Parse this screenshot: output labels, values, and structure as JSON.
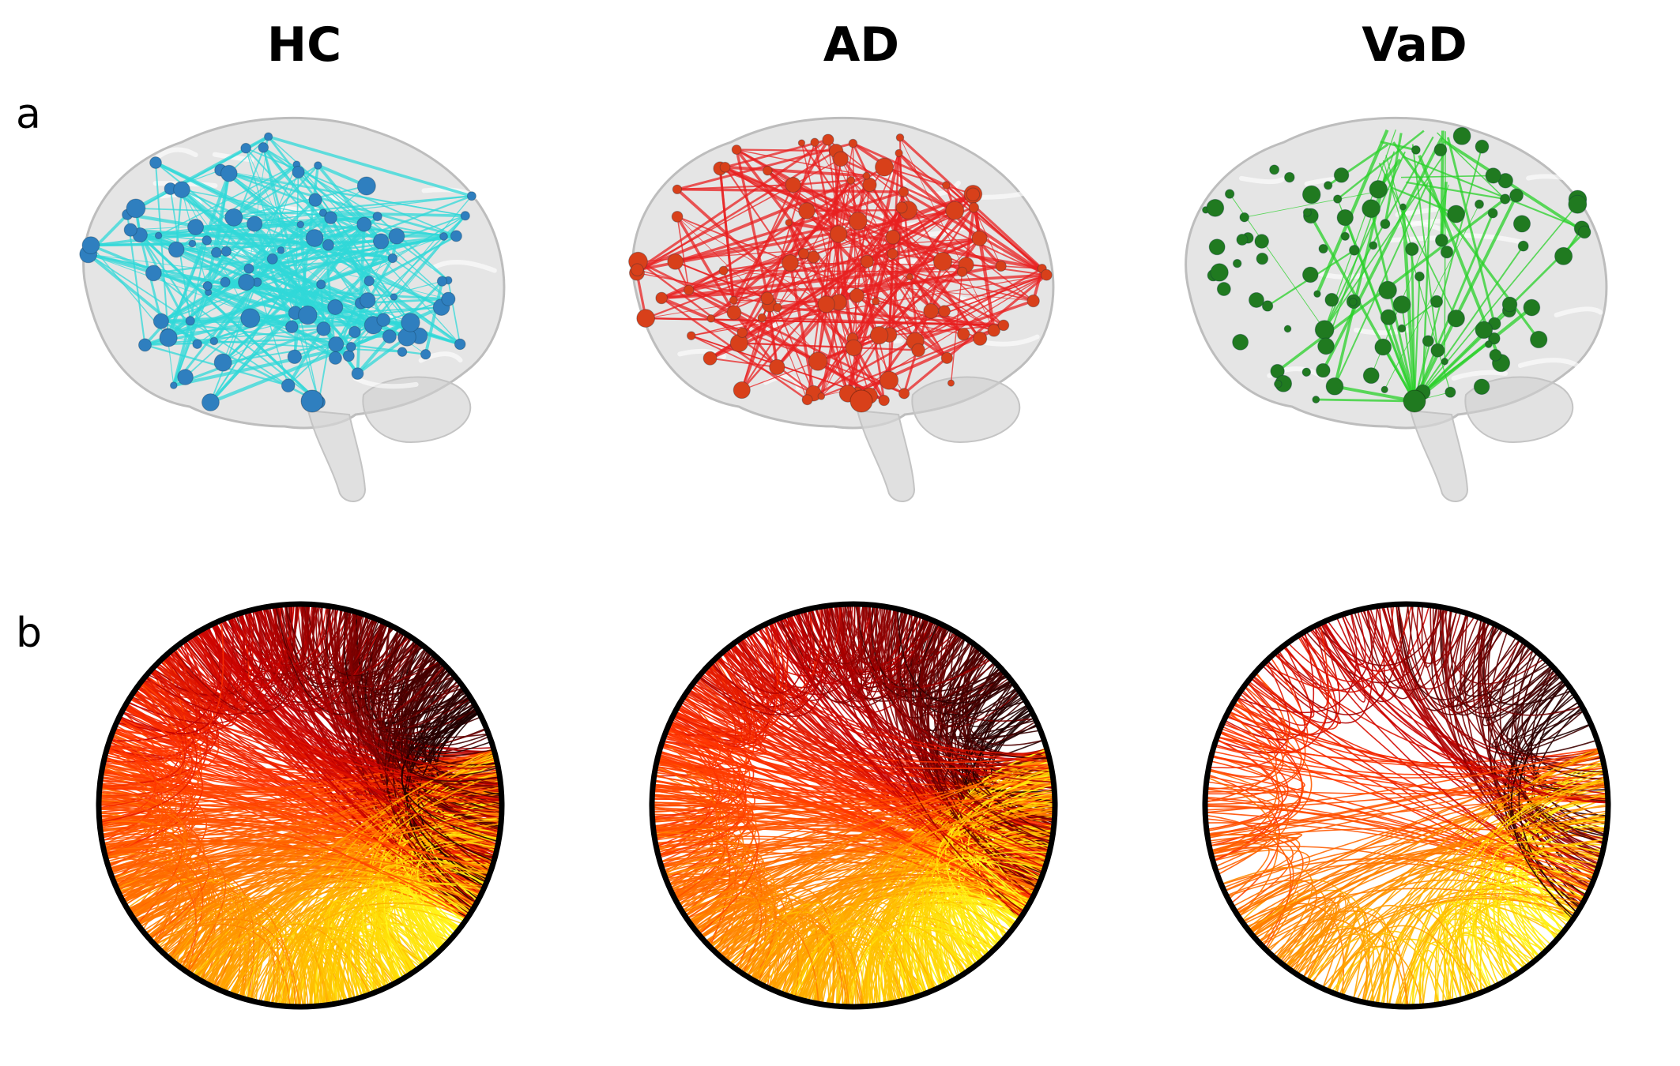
{
  "columns": [
    {
      "id": "hc",
      "title": "HC",
      "edge_color": "#30d8d8",
      "node_color": "#2f7fbf",
      "edge_density": 1.0
    },
    {
      "id": "ad",
      "title": "AD",
      "edge_color": "#e82020",
      "node_color": "#d8401a",
      "edge_density": 0.85
    },
    {
      "id": "vad",
      "title": "VaD",
      "edge_color": "#28d028",
      "node_color": "#207a20",
      "edge_density": 0.35
    }
  ],
  "row_labels": {
    "a": "a",
    "b": "b"
  },
  "colors": {
    "brain_fill": "#cfcfcf",
    "circle_border": "#000000",
    "gradient": [
      "#1a0000",
      "#7a0000",
      "#c80000",
      "#ff3300",
      "#ff6600",
      "#ffa000",
      "#ffd000",
      "#ffff20"
    ]
  }
}
